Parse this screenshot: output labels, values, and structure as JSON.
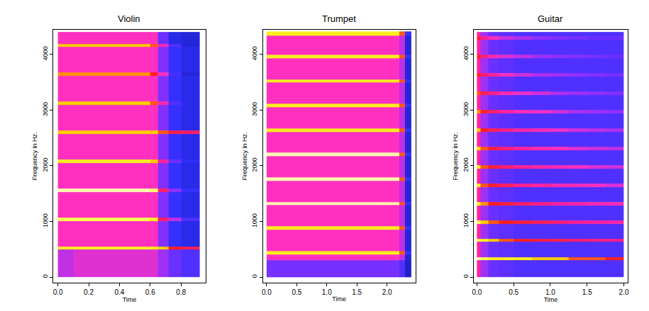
{
  "chart_data": [
    {
      "type": "heatmap",
      "title": "Violin",
      "xlabel": "Time",
      "ylabel": "Frequency in Hz.",
      "x_bins": [
        0,
        0.1,
        0.2,
        0.3,
        0.4,
        0.5,
        0.6,
        0.65,
        0.72,
        0.8,
        0.92
      ],
      "y_bins": [
        0,
        490,
        550,
        1010,
        1070,
        1530,
        1590,
        2050,
        2110,
        2570,
        2630,
        3090,
        3150,
        3610,
        3670,
        4130,
        4190,
        4400
      ],
      "z": [
        [
          1.8,
          2,
          2,
          2,
          2,
          2,
          2,
          1.6,
          1.2,
          1
        ],
        [
          4,
          4,
          4,
          4,
          4,
          4,
          4,
          3.8,
          3.5,
          3.2
        ],
        [
          2.2,
          2.2,
          2.2,
          2.2,
          2.2,
          2.2,
          2.2,
          1.4,
          0.8,
          0.6
        ],
        [
          4.2,
          4.2,
          4.2,
          4.2,
          4.2,
          4.2,
          4,
          3,
          1.8,
          1
        ],
        [
          2.2,
          2.2,
          2.2,
          2.2,
          2.2,
          2.2,
          2.2,
          1.4,
          0.8,
          0.6
        ],
        [
          4.5,
          4.5,
          4.5,
          4.5,
          4.5,
          4.5,
          4.3,
          3,
          1.5,
          0.8
        ],
        [
          2.2,
          2.2,
          2.2,
          2.2,
          2.2,
          2.2,
          2.2,
          1.4,
          0.8,
          0.6
        ],
        [
          4,
          4,
          4,
          4,
          4,
          4,
          3.8,
          2.6,
          1.2,
          0.7
        ],
        [
          2.2,
          2.2,
          2.2,
          2.2,
          2.2,
          2.2,
          2.2,
          1.4,
          0.8,
          0.6
        ],
        [
          3.8,
          3.8,
          3.8,
          3.8,
          3.8,
          3.8,
          3.8,
          3.6,
          3.2,
          3
        ],
        [
          2.2,
          2.2,
          2.2,
          2.2,
          2.2,
          2.2,
          2.2,
          1.4,
          0.8,
          0.6
        ],
        [
          3.8,
          3.8,
          3.8,
          3.8,
          3.8,
          3.8,
          3.6,
          2.4,
          1,
          0.6
        ],
        [
          2.2,
          2.2,
          2.2,
          2.2,
          2.2,
          2.2,
          2.2,
          1.4,
          0.8,
          0.6
        ],
        [
          3.7,
          3.7,
          3.7,
          3.7,
          3.7,
          3.7,
          3.5,
          2.2,
          0.9,
          0.5
        ],
        [
          2.2,
          2.2,
          2.2,
          2.2,
          2.2,
          2.2,
          2.2,
          1.4,
          0.8,
          0.6
        ],
        [
          3.8,
          3.8,
          3.8,
          3.8,
          3.8,
          3.8,
          3.6,
          2.4,
          1,
          0.5
        ],
        [
          2.2,
          2.2,
          2.2,
          2.2,
          2.2,
          2.2,
          2.2,
          1.2,
          0.6,
          0.5
        ]
      ],
      "zlim": [
        0,
        5
      ],
      "xlim": [
        -0.03,
        0.96
      ],
      "ylim": [
        -100,
        4440
      ],
      "xticks": [
        {
          "value": 0,
          "label": "0.0"
        },
        {
          "value": 0.2,
          "label": "0.2"
        },
        {
          "value": 0.4,
          "label": "0.4"
        },
        {
          "value": 0.6,
          "label": "0.6"
        },
        {
          "value": 0.8,
          "label": "0.8"
        }
      ],
      "yticks": [
        0,
        1000,
        2000,
        3000,
        4000
      ]
    },
    {
      "type": "heatmap",
      "title": "Trumpet",
      "xlabel": "Time",
      "ylabel": "Frequency in Hz.",
      "x_bins": [
        0,
        0.2,
        0.4,
        0.6,
        0.8,
        1.0,
        1.2,
        1.4,
        1.6,
        1.8,
        2.0,
        2.2,
        2.3,
        2.4
      ],
      "y_bins": [
        0,
        300,
        410,
        470,
        850,
        910,
        1290,
        1350,
        1730,
        1790,
        2170,
        2230,
        2610,
        2670,
        3050,
        3110,
        3490,
        3550,
        3930,
        3990,
        4340,
        4410
      ],
      "z": [
        [
          1.3,
          1.3,
          1.3,
          1.3,
          1.3,
          1.3,
          1.3,
          1.3,
          1.3,
          1.3,
          1.3,
          1,
          0.4
        ],
        [
          2.2,
          2.2,
          2.2,
          2.2,
          2.2,
          2.2,
          2.2,
          2.2,
          2.2,
          2.2,
          2.2,
          1.8,
          0.5
        ],
        [
          4,
          4,
          4,
          4,
          4,
          4,
          4,
          4,
          4,
          4,
          4,
          3.6,
          0.8
        ],
        [
          2.2,
          2.2,
          2.2,
          2.2,
          2.2,
          2.2,
          2.2,
          2.2,
          2.2,
          2.2,
          2.2,
          1.8,
          0.5
        ],
        [
          4,
          4,
          4,
          4,
          4,
          4,
          4,
          4,
          4,
          4,
          4,
          3.6,
          0.8
        ],
        [
          2.2,
          2.2,
          2.2,
          2.2,
          2.2,
          2.2,
          2.2,
          2.2,
          2.2,
          2.2,
          2.2,
          1.8,
          0.5
        ],
        [
          4.5,
          4.5,
          4.5,
          4.5,
          4.5,
          4.5,
          4.5,
          4.5,
          4.5,
          4.5,
          4.5,
          3.6,
          0.8
        ],
        [
          2.2,
          2.2,
          2.2,
          2.2,
          2.2,
          2.2,
          2.2,
          2.2,
          2.2,
          2.2,
          2.2,
          1.8,
          0.5
        ],
        [
          4.5,
          4.5,
          4.5,
          4.5,
          4.5,
          4.5,
          4.5,
          4.5,
          4.5,
          4.5,
          4.5,
          3.6,
          0.8
        ],
        [
          2.2,
          2.2,
          2.2,
          2.2,
          2.2,
          2.2,
          2.2,
          2.2,
          2.2,
          2.2,
          2.2,
          1.8,
          0.5
        ],
        [
          4.5,
          4.5,
          4.5,
          4.5,
          4.5,
          4.5,
          4.5,
          4.5,
          4.5,
          4.5,
          4.5,
          3.6,
          0.8
        ],
        [
          2.2,
          2.2,
          2.2,
          2.2,
          2.2,
          2.2,
          2.2,
          2.2,
          2.2,
          2.2,
          2.2,
          1.8,
          0.5
        ],
        [
          4,
          4,
          4,
          4,
          4,
          4,
          4,
          4,
          4,
          4,
          4,
          3.6,
          0.8
        ],
        [
          2.2,
          2.2,
          2.2,
          2.2,
          2.2,
          2.2,
          2.2,
          2.2,
          2.2,
          2.2,
          2.2,
          1.8,
          0.5
        ],
        [
          4,
          4,
          4,
          4,
          4,
          4,
          4,
          4,
          4,
          4,
          4,
          3.6,
          0.8
        ],
        [
          2.2,
          2.2,
          2.2,
          2.2,
          2.2,
          2.2,
          2.2,
          2.2,
          2.2,
          2.2,
          2.2,
          1.8,
          0.5
        ],
        [
          4,
          4,
          4,
          4,
          4,
          4,
          4,
          4,
          4,
          4,
          4,
          3.6,
          0.8
        ],
        [
          2.2,
          2.2,
          2.2,
          2.2,
          2.2,
          2.2,
          2.2,
          2.2,
          2.2,
          2.2,
          2.2,
          1.8,
          0.5
        ],
        [
          4,
          4,
          4,
          4,
          4,
          4,
          4,
          4,
          4,
          4,
          4,
          3.6,
          0.8
        ],
        [
          2.2,
          2.2,
          2.2,
          2.2,
          2.2,
          2.2,
          2.2,
          2.2,
          2.2,
          2.2,
          2.2,
          1.8,
          0.5
        ],
        [
          4,
          4,
          4,
          4,
          4,
          4,
          4,
          4,
          4,
          4,
          4,
          3.6,
          0.8
        ]
      ],
      "zlim": [
        0,
        5
      ],
      "xlim": [
        -0.06,
        2.47
      ],
      "ylim": [
        -100,
        4440
      ],
      "xticks": [
        {
          "value": 0,
          "label": "0.0"
        },
        {
          "value": 0.5,
          "label": "0.5"
        },
        {
          "value": 1,
          "label": "1.0"
        },
        {
          "value": 1.5,
          "label": "1.5"
        },
        {
          "value": 2,
          "label": "2.0"
        }
      ],
      "yticks": [
        0,
        1000,
        2000,
        3000,
        4000
      ]
    },
    {
      "type": "heatmap",
      "title": "Guitar",
      "xlabel": "Time",
      "ylabel": "Frequency in Hz.",
      "x_bins": [
        0,
        0.05,
        0.15,
        0.3,
        0.5,
        0.75,
        1.0,
        1.25,
        1.5,
        1.75,
        2.0
      ],
      "y_bins": [
        0,
        300,
        360,
        630,
        690,
        960,
        1020,
        1290,
        1350,
        1620,
        1680,
        1950,
        2010,
        2280,
        2340,
        2610,
        2670,
        2940,
        3000,
        3270,
        3330,
        3600,
        3660,
        3930,
        3990,
        4260,
        4320,
        4400
      ],
      "z": [
        [
          2.6,
          1.6,
          1.2,
          1.1,
          1,
          1,
          1,
          1,
          1,
          1
        ],
        [
          4.6,
          4.2,
          4,
          4,
          4,
          3.8,
          3.8,
          3.6,
          3.6,
          3.5
        ],
        [
          2.6,
          1.6,
          1.2,
          1.1,
          1,
          1,
          1,
          1,
          1,
          1
        ],
        [
          4.2,
          4,
          3.8,
          3.6,
          3.5,
          3.3,
          3.2,
          3,
          2.9,
          2.8
        ],
        [
          2.6,
          1.6,
          1.2,
          1.1,
          1,
          1,
          1,
          1,
          1,
          1
        ],
        [
          4.2,
          3.8,
          3.6,
          3.5,
          3.3,
          3.1,
          2.9,
          2.7,
          2.6,
          2.5
        ],
        [
          2.6,
          1.6,
          1.2,
          1.1,
          1,
          1,
          1,
          1,
          1,
          1
        ],
        [
          4,
          3.7,
          3.5,
          3.3,
          3,
          2.8,
          2.6,
          2.5,
          2.4,
          2.3
        ],
        [
          2.6,
          1.6,
          1.2,
          1.1,
          1,
          1,
          1,
          1,
          1,
          1
        ],
        [
          4,
          3.6,
          3.4,
          3.1,
          2.8,
          2.6,
          2.4,
          2.3,
          2.2,
          2
        ],
        [
          2.6,
          1.6,
          1.2,
          1.1,
          1,
          1,
          1,
          1,
          1,
          1
        ],
        [
          4,
          3.6,
          3.3,
          3,
          2.7,
          2.5,
          2.3,
          2.2,
          2,
          1.9
        ],
        [
          2.6,
          1.6,
          1.2,
          1.1,
          1,
          1,
          1,
          1,
          1,
          1
        ],
        [
          3.9,
          3.6,
          3.3,
          2.9,
          2.6,
          2.4,
          2.2,
          2,
          1.9,
          1.8
        ],
        [
          2.6,
          1.6,
          1.2,
          1.1,
          1,
          1,
          1,
          1,
          1,
          1
        ],
        [
          3.8,
          3.5,
          3.1,
          2.8,
          2.5,
          2.3,
          2.1,
          1.9,
          1.8,
          1.7
        ],
        [
          2.6,
          1.6,
          1.2,
          1.1,
          1,
          1,
          1,
          1,
          1,
          1
        ],
        [
          3.7,
          3.4,
          3,
          2.6,
          2.3,
          2.1,
          1.9,
          1.7,
          1.6,
          1.5
        ],
        [
          2.6,
          1.6,
          1.2,
          1.1,
          1,
          1,
          1,
          1,
          1,
          1
        ],
        [
          3.6,
          3.2,
          2.8,
          2.4,
          2.1,
          1.9,
          1.7,
          1.6,
          1.5,
          1.4
        ],
        [
          2.6,
          1.6,
          1.2,
          1.1,
          1,
          1,
          1,
          1,
          1,
          1
        ],
        [
          3.5,
          3,
          2.6,
          2.2,
          1.9,
          1.7,
          1.6,
          1.5,
          1.4,
          1.3
        ],
        [
          2.6,
          1.6,
          1.2,
          1.1,
          1,
          1,
          1,
          1,
          1,
          1
        ],
        [
          3.5,
          2.9,
          2.4,
          2,
          1.8,
          1.6,
          1.5,
          1.4,
          1.3,
          1.2
        ],
        [
          2.6,
          1.6,
          1.2,
          1.1,
          1,
          1,
          1,
          1,
          1,
          1
        ],
        [
          3.4,
          2.8,
          2.3,
          1.9,
          1.7,
          1.5,
          1.4,
          1.3,
          1.2,
          1.2
        ],
        [
          2.6,
          1.6,
          1.2,
          1.1,
          1,
          1,
          1,
          1,
          1,
          1
        ]
      ],
      "zlim": [
        0,
        5
      ],
      "xlim": [
        -0.04,
        2.05
      ],
      "ylim": [
        -100,
        4440
      ],
      "xticks": [
        {
          "value": 0,
          "label": "0.0"
        },
        {
          "value": 0.5,
          "label": "0.5"
        },
        {
          "value": 1,
          "label": "1.0"
        },
        {
          "value": 1.5,
          "label": "1.5"
        },
        {
          "value": 2,
          "label": "2.0"
        }
      ],
      "yticks": [
        0,
        1000,
        2000,
        3000,
        4000
      ]
    }
  ]
}
